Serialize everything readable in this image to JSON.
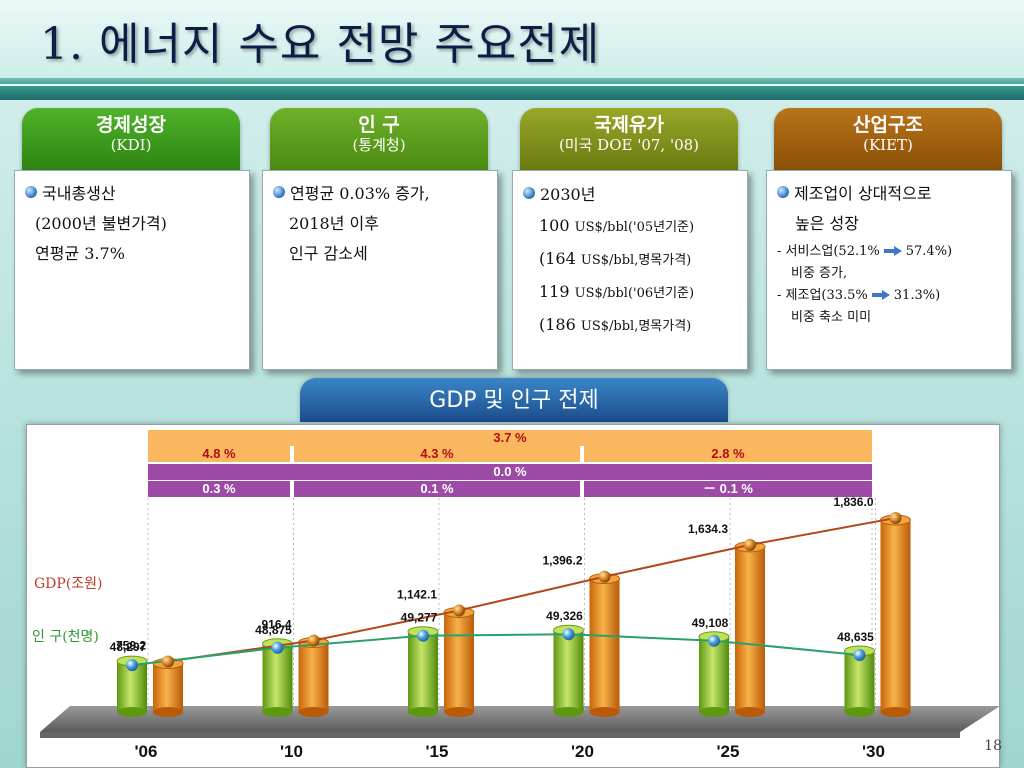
{
  "slide": {
    "title": "1. 에너지 수요 전망 주요전제",
    "page_number": "18"
  },
  "cards": [
    {
      "head1": "경제성장",
      "head2": "(KDI)",
      "color": "#3c9b1a",
      "lines": [
        "국내총생산",
        "(2000년 불변가격)",
        "연평균 3.7%"
      ]
    },
    {
      "head1": "인 구",
      "head2": "(통계청)",
      "color": "#5a9a1a",
      "lines": [
        "연평균 0.03% 증가,",
        "2018년 이후",
        "인구 감소세"
      ]
    },
    {
      "head1": "국제유가",
      "head2": "(미국 DOE '07, '08)",
      "color": "#7f8f16",
      "lines": [
        "2030년",
        "100",
        "US$/bbl('05년기준)",
        "(164",
        "US$/bbl,명목가격)",
        "119",
        "US$/bbl('06년기준)",
        "(186",
        "US$/bbl,명목가격)"
      ]
    },
    {
      "head1": "산업구조",
      "head2": "(KIET)",
      "color": "#a0620e",
      "lines": [
        "제조업이 상대적으로",
        "높은 성장",
        "- 서비스업(52.1%",
        "57.4%)",
        "비중 증가,",
        "- 제조업(33.5%",
        "31.3%)",
        "비중 축소 미미"
      ]
    }
  ],
  "gdp_tab": "GDP 및 인구 전제",
  "growth_rates": {
    "gdp_overall": "3.7 %",
    "gdp_periods": [
      "4.8 %",
      "4.3 %",
      "2.8 %"
    ],
    "pop_overall": "0.0 %",
    "pop_periods": [
      "0.3 %",
      "0.1 %",
      "－ 0.1 %"
    ]
  },
  "chart_data": {
    "type": "bar",
    "categories": [
      "'06",
      "'10",
      "'15",
      "'20",
      "'25",
      "'30"
    ],
    "series": [
      {
        "name": "GDP(조원)",
        "values": [
          759.2,
          916.4,
          1142.1,
          1396.2,
          1634.3,
          1836.0
        ],
        "labels": [
          "759.2",
          "916.4",
          "1,142.1",
          "1,396.2",
          "1,634.3",
          "1,836.0"
        ],
        "color": "#e98a1e"
      },
      {
        "name": "인 구(천명)",
        "values": [
          48297,
          48875,
          49277,
          49326,
          49108,
          48635
        ],
        "labels": [
          "48,297",
          "48,875",
          "49,277",
          "49,326",
          "49,108",
          "48,635"
        ],
        "color": "#8cbf2a"
      }
    ],
    "line_colors": {
      "gdp": "#b3461c",
      "population": "#2aa06a"
    },
    "legend_colors": {
      "gdp": "#c0392b",
      "population": "#2e9a2e"
    }
  }
}
